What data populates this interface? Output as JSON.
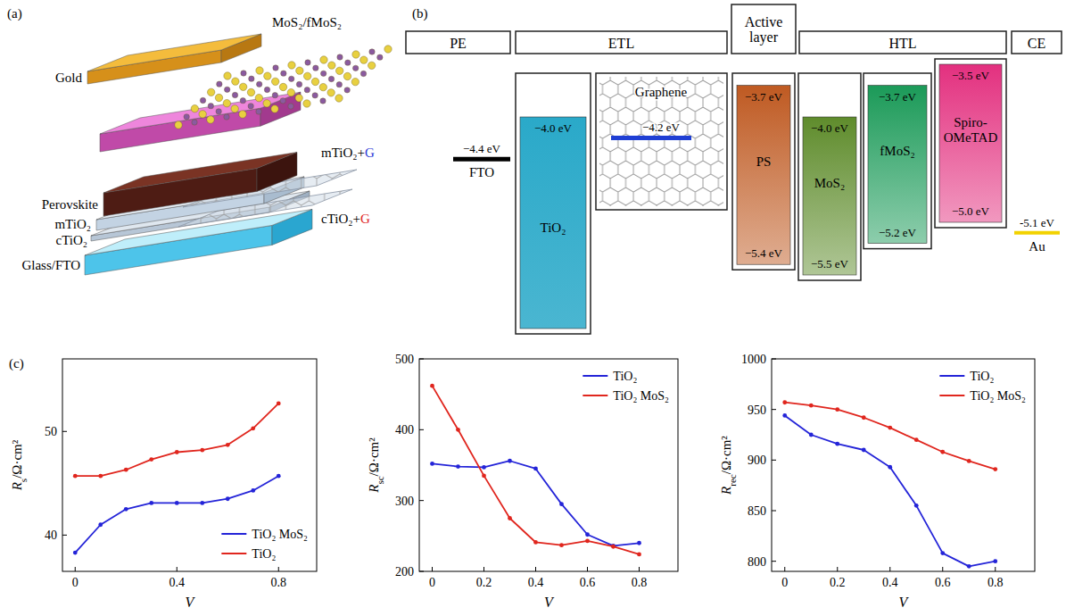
{
  "panel_a": {
    "label": "(a)",
    "gold": "Gold",
    "mos2": "MoS₂/fMoS₂",
    "mtio2_g": [
      {
        "text": "mTiO₂+"
      },
      {
        "text": "G",
        "color": "#2a36d6"
      }
    ],
    "perovskite": "Perovskite",
    "mtio2": "mTiO₂",
    "ctio2_g": [
      {
        "text": "cTiO₂+"
      },
      {
        "text": "G",
        "color": "#e02424"
      }
    ],
    "ctio2": "cTiO₂",
    "glass": "Glass/FTO"
  },
  "panel_b": {
    "label": "(b)",
    "headers": [
      "PE",
      "ETL",
      "Active layer",
      "HTL",
      "CE"
    ],
    "fto": {
      "name": "FTO",
      "level": -4.4,
      "label": "−4.4 eV",
      "color": "#000000"
    },
    "tio2": {
      "name": "TiO₂",
      "top": -4.0,
      "top_label": "−4.0 eV",
      "color": "#2aa9c9"
    },
    "graphene": {
      "name": "Graphene",
      "level": -4.2,
      "label": "−4.2 eV",
      "color": "#1f3fd4"
    },
    "ps": {
      "name": "PS",
      "top": -3.7,
      "bottom": -5.4,
      "top_label": "−3.7 eV",
      "bottom_label": "−5.4 eV",
      "color": "#bf5a22"
    },
    "mos2": {
      "name": "MoS₂",
      "top": -4.0,
      "bottom": -5.5,
      "top_label": "−4.0 eV",
      "bottom_label": "−5.5 eV",
      "color": "#5f8c2c"
    },
    "fmos2": {
      "name": "fMoS₂",
      "top": -3.7,
      "bottom": -5.2,
      "top_label": "−3.7 eV",
      "bottom_label": "−5.2 eV",
      "color": "#1b9a58"
    },
    "spiro": {
      "name": "Spiro-OMeTAD",
      "top": -3.5,
      "bottom": -5.0,
      "top_label": "−3.5 eV",
      "bottom_label": "−5.0 eV",
      "color": "#e3307f"
    },
    "au": {
      "name": "Au",
      "level": -5.1,
      "label": "-5.1 eV",
      "color": "#f2d200"
    }
  },
  "panel_c": {
    "label": "(c)"
  },
  "chart_data": [
    {
      "type": "line",
      "x": [
        0,
        0.1,
        0.2,
        0.3,
        0.4,
        0.5,
        0.6,
        0.7,
        0.8
      ],
      "series": [
        {
          "name": "TiO₂ MoS₂",
          "color": "#2424d8",
          "values": [
            38.3,
            41.0,
            42.5,
            43.1,
            43.1,
            43.1,
            43.5,
            44.3,
            45.7
          ]
        },
        {
          "name": "TiO₂",
          "color": "#e0261e",
          "values": [
            45.7,
            45.7,
            46.3,
            47.3,
            48.0,
            48.2,
            48.7,
            50.3,
            52.7
          ]
        }
      ],
      "xlabel": "V",
      "ylabel": {
        "main": "R",
        "sub": "s",
        "rest": "/Ω·cm²"
      },
      "xlim": [
        -0.05,
        0.95
      ],
      "ylim": [
        36.5,
        57
      ],
      "xticks": [
        0,
        0.4,
        0.8
      ],
      "yticks": [
        40,
        50
      ],
      "legend": "lower right",
      "marker": "circle",
      "grid": false
    },
    {
      "type": "line",
      "x": [
        0,
        0.1,
        0.2,
        0.3,
        0.4,
        0.5,
        0.6,
        0.7,
        0.8
      ],
      "series": [
        {
          "name": "TiO₂",
          "color": "#2424d8",
          "values": [
            352,
            348,
            347,
            356,
            345,
            295,
            252,
            236,
            240
          ]
        },
        {
          "name": "TiO₂ MoS₂",
          "color": "#e0261e",
          "values": [
            462,
            400,
            335,
            275,
            241,
            237,
            243,
            235,
            224
          ]
        }
      ],
      "xlabel": "V",
      "ylabel": {
        "main": "R",
        "sub": "sc",
        "rest": "/Ω·cm²"
      },
      "xlim": [
        -0.05,
        0.95
      ],
      "ylim": [
        200,
        500
      ],
      "xticks": [
        0,
        0.2,
        0.4,
        0.6,
        0.8
      ],
      "yticks": [
        200,
        300,
        400,
        500
      ],
      "legend": "upper right",
      "marker": "circle",
      "grid": false
    },
    {
      "type": "line",
      "x": [
        0,
        0.1,
        0.2,
        0.3,
        0.4,
        0.5,
        0.6,
        0.7,
        0.8
      ],
      "series": [
        {
          "name": "TiO₂",
          "color": "#2424d8",
          "values": [
            944,
            925,
            916,
            910,
            893,
            855,
            808,
            795,
            800
          ]
        },
        {
          "name": "TiO₂ MoS₂",
          "color": "#e0261e",
          "values": [
            957,
            954,
            950,
            942,
            932,
            920,
            908,
            899,
            891
          ]
        }
      ],
      "xlabel": "V",
      "ylabel": {
        "main": "R",
        "sub": "rec",
        "rest": "/Ω·cm²"
      },
      "xlim": [
        -0.05,
        0.95
      ],
      "ylim": [
        790,
        1000
      ],
      "xticks": [
        0,
        0.2,
        0.4,
        0.6,
        0.8
      ],
      "yticks": [
        800,
        850,
        900,
        950,
        1000
      ],
      "legend": "upper right",
      "marker": "circle",
      "grid": false
    }
  ]
}
